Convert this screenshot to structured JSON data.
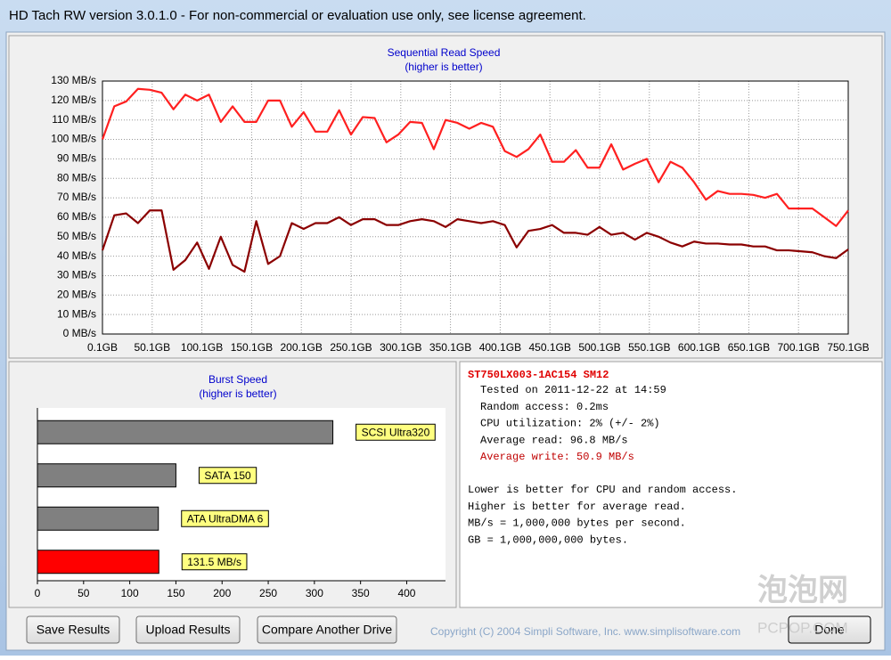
{
  "window": {
    "title": "HD Tach RW version 3.0.1.0  - For non-commercial or evaluation use only, see license agreement."
  },
  "chart_data": [
    {
      "type": "line",
      "title": "Sequential Read Speed",
      "subtitle": "(higher is better)",
      "x": [
        0.1,
        12.0,
        23.9,
        35.8,
        47.7,
        59.6,
        71.5,
        83.4,
        95.3,
        107.2,
        119.1,
        131.0,
        142.9,
        154.8,
        166.7,
        178.6,
        190.5,
        202.4,
        214.3,
        226.2,
        238.1,
        250.0,
        261.9,
        273.8,
        285.7,
        297.6,
        309.5,
        321.4,
        333.3,
        345.2,
        357.1,
        369.0,
        380.9,
        392.8,
        404.7,
        416.6,
        428.5,
        440.4,
        452.3,
        464.2,
        476.1,
        488.0,
        499.9,
        511.8,
        523.7,
        535.6,
        547.5,
        559.4,
        571.3,
        583.2,
        595.1,
        607.0,
        618.9,
        630.8,
        642.7,
        654.6,
        666.5,
        678.4,
        690.3,
        702.2,
        714.1,
        726.0,
        737.9,
        750.1
      ],
      "series": [
        {
          "color": "#ff2020",
          "values": [
            100,
            117,
            119.5,
            126,
            125.5,
            124,
            115.5,
            123,
            120,
            123,
            109,
            117,
            109,
            109,
            120,
            120,
            106.5,
            114,
            104,
            104,
            115,
            102.5,
            111.5,
            111,
            98.5,
            102.5,
            109,
            108.5,
            95,
            110,
            108.5,
            105.5,
            108.5,
            106.5,
            94,
            91,
            95,
            102.5,
            88.5,
            88.5,
            94.5,
            85.5,
            85.5,
            97.5,
            84.5,
            87.5,
            90,
            78,
            88.5,
            85.5,
            78,
            69,
            73.5,
            72,
            72,
            71.5,
            70,
            72,
            64.5,
            64.5,
            64.5,
            60,
            55.5,
            63.5
          ]
        },
        {
          "color": "#8b0000",
          "values": [
            43,
            61,
            62,
            57,
            63.5,
            63.5,
            33,
            38,
            47,
            33.5,
            50,
            35.5,
            32,
            58,
            36,
            40,
            57,
            54,
            57,
            57,
            60,
            56,
            59,
            59,
            56,
            56,
            58,
            59,
            58,
            55,
            59,
            58,
            57,
            58,
            56,
            44.5,
            53,
            54,
            56,
            52,
            52,
            51,
            55,
            51,
            52,
            48.5,
            52,
            50,
            47,
            45,
            47.5,
            46.5,
            46.5,
            46,
            46,
            45,
            45,
            43,
            43,
            42.5,
            42,
            40,
            39,
            43.5
          ]
        }
      ],
      "xlim": [
        0.1,
        750.1
      ],
      "xticks": [
        {
          "value": 0.1,
          "label": "0.1GB"
        },
        {
          "value": 50.1,
          "label": "50.1GB"
        },
        {
          "value": 100.1,
          "label": "100.1GB"
        },
        {
          "value": 150.1,
          "label": "150.1GB"
        },
        {
          "value": 200.1,
          "label": "200.1GB"
        },
        {
          "value": 250.1,
          "label": "250.1GB"
        },
        {
          "value": 300.1,
          "label": "300.1GB"
        },
        {
          "value": 350.1,
          "label": "350.1GB"
        },
        {
          "value": 400.1,
          "label": "400.1GB"
        },
        {
          "value": 450.1,
          "label": "450.1GB"
        },
        {
          "value": 500.1,
          "label": "500.1GB"
        },
        {
          "value": 550.1,
          "label": "550.1GB"
        },
        {
          "value": 600.1,
          "label": "600.1GB"
        },
        {
          "value": 650.1,
          "label": "650.1GB"
        },
        {
          "value": 700.1,
          "label": "700.1GB"
        },
        {
          "value": 750.1,
          "label": "750.1GB"
        }
      ],
      "ylim": [
        0,
        130
      ],
      "yticks": [
        {
          "value": 0,
          "label": "0 MB/s"
        },
        {
          "value": 10,
          "label": "10 MB/s"
        },
        {
          "value": 20,
          "label": "20 MB/s"
        },
        {
          "value": 30,
          "label": "30 MB/s"
        },
        {
          "value": 40,
          "label": "40 MB/s"
        },
        {
          "value": 50,
          "label": "50 MB/s"
        },
        {
          "value": 60,
          "label": "60 MB/s"
        },
        {
          "value": 70,
          "label": "70 MB/s"
        },
        {
          "value": 80,
          "label": "80 MB/s"
        },
        {
          "value": 90,
          "label": "90 MB/s"
        },
        {
          "value": 100,
          "label": "100 MB/s"
        },
        {
          "value": 110,
          "label": "110 MB/s"
        },
        {
          "value": 120,
          "label": "120 MB/s"
        },
        {
          "value": 130,
          "label": "130 MB/s"
        }
      ],
      "grid": true
    },
    {
      "type": "hbar",
      "title": "Burst Speed",
      "subtitle": "(higher is better)",
      "categories": [
        "SCSI Ultra320",
        "SATA 150",
        "ATA UltraDMA 6",
        null
      ],
      "values": [
        320,
        150,
        131,
        131.5
      ],
      "value_labels": [
        null,
        null,
        null,
        "131.5 MB/s"
      ],
      "colors": [
        "#808080",
        "#808080",
        "#808080",
        "#ff0000"
      ],
      "label_color": "#ffff80",
      "xlim": [
        0,
        442
      ],
      "xticks": [
        0,
        50,
        100,
        150,
        200,
        250,
        300,
        350,
        400
      ]
    }
  ],
  "info": {
    "drive": "ST750LX003-1AC154 SM12",
    "lines": [
      "Tested on 2011-12-22 at 14:59",
      "Random access: 0.2ms",
      "CPU utilization: 2% (+/- 2%)",
      "Average read: 96.8 MB/s",
      "Average write: 50.9 MB/s"
    ],
    "notes": [
      "Lower is better for CPU and random access.",
      "Higher is better for average read.",
      "MB/s = 1,000,000 bytes per second.",
      "GB = 1,000,000,000 bytes."
    ]
  },
  "buttons": [
    "Save Results",
    "Upload Results",
    "Compare Another Drive",
    "Done"
  ],
  "copyright": "Copyright (C) 2004 Simpli Software, Inc. www.simplisoftware.com",
  "watermark": {
    "name": "泡泡网",
    "site": "PCPOP.COM"
  }
}
